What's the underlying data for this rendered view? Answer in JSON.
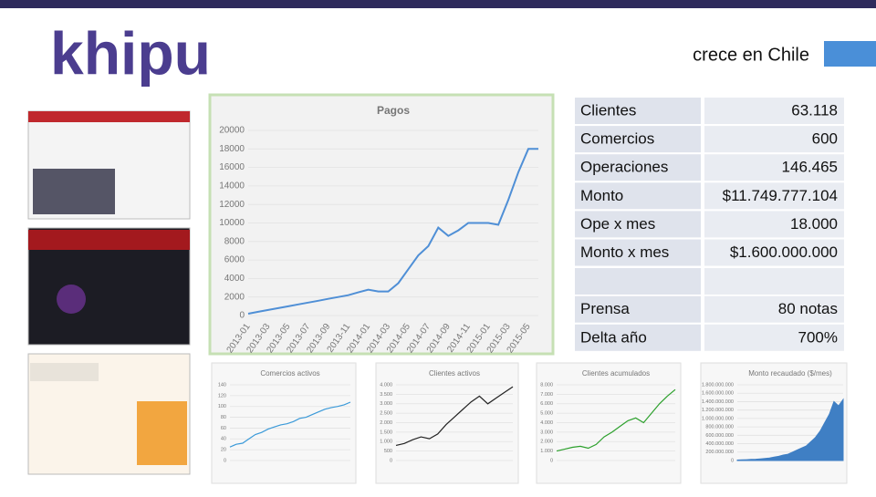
{
  "header": {
    "logo": "khipu",
    "title": "crece en Chile"
  },
  "table": {
    "rows": [
      [
        "Clientes",
        "63.118"
      ],
      [
        "Comercios",
        "600"
      ],
      [
        "Operaciones",
        "146.465"
      ],
      [
        "Monto",
        "$11.749.777.104"
      ],
      [
        "Ope x mes",
        "18.000"
      ],
      [
        "Monto x mes",
        "$1.600.000.000"
      ],
      [
        "Prensa",
        "80 notas"
      ],
      [
        "Delta año",
        "700%"
      ]
    ]
  },
  "chart_data": [
    {
      "type": "line",
      "title": "Pagos",
      "color": "#4f8fd6",
      "grid": true,
      "categories": [
        "2013-01",
        null,
        "2013-03",
        null,
        "2013-05",
        null,
        "2013-07",
        null,
        "2013-09",
        null,
        "2013-11",
        null,
        "2014-01",
        null,
        "2014-03",
        null,
        "2014-05",
        null,
        "2014-07",
        null,
        "2014-09",
        null,
        "2014-11",
        null,
        "2015-01",
        null,
        "2015-03",
        null,
        "2015-05",
        null
      ],
      "values": [
        200,
        400,
        600,
        800,
        1000,
        1200,
        1400,
        1600,
        1800,
        2000,
        2200,
        2500,
        2800,
        2600,
        2600,
        3500,
        5000,
        6500,
        7500,
        9500,
        8600,
        9200,
        10000,
        10000,
        10000,
        9800,
        12500,
        15500,
        18000,
        18000
      ],
      "ylim": [
        0,
        20000
      ],
      "yticks": [
        0,
        2000,
        4000,
        6000,
        8000,
        10000,
        12000,
        14000,
        16000,
        18000,
        20000
      ]
    },
    {
      "type": "line",
      "title": "Comercios activos",
      "color": "#3b9ad9",
      "grid": true,
      "values": [
        25,
        30,
        32,
        40,
        48,
        52,
        58,
        62,
        66,
        68,
        72,
        78,
        80,
        85,
        90,
        95,
        98,
        100,
        103,
        108
      ],
      "ylim": [
        0,
        140
      ],
      "yticks": [
        0,
        20,
        40,
        60,
        80,
        100,
        120,
        140
      ]
    },
    {
      "type": "line",
      "title": "Clientes activos",
      "color": "#222222",
      "grid": true,
      "values": [
        800,
        900,
        1100,
        1250,
        1150,
        1400,
        1900,
        2300,
        2700,
        3100,
        3400,
        3000,
        3300,
        3600,
        3900
      ],
      "ylim": [
        0,
        4000
      ],
      "yticks": [
        0,
        {
          "value": 500,
          "label": "500"
        },
        {
          "value": 1000,
          "label": "1.000"
        },
        {
          "value": 1500,
          "label": "1.500"
        },
        {
          "value": 2000,
          "label": "2.000"
        },
        {
          "value": 2500,
          "label": "2.500"
        },
        {
          "value": 3000,
          "label": "3.000"
        },
        {
          "value": 3500,
          "label": "3.500"
        },
        {
          "value": 4000,
          "label": "4.000"
        }
      ]
    },
    {
      "type": "line",
      "title": "Clientes acumulados",
      "color": "#2ca02c",
      "grid": true,
      "values": [
        1000,
        1200,
        1400,
        1500,
        1300,
        1700,
        2500,
        3000,
        3600,
        4200,
        4500,
        4000,
        5000,
        6000,
        6800,
        7500
      ],
      "ylim": [
        0,
        8000
      ],
      "yticks": [
        0,
        {
          "value": 1000,
          "label": "1.000"
        },
        {
          "value": 2000,
          "label": "2.000"
        },
        {
          "value": 3000,
          "label": "3.000"
        },
        {
          "value": 4000,
          "label": "4.000"
        },
        {
          "value": 5000,
          "label": "5.000"
        },
        {
          "value": 6000,
          "label": "6.000"
        },
        {
          "value": 7000,
          "label": "7.000"
        },
        {
          "value": 8000,
          "label": "8.000"
        }
      ]
    },
    {
      "type": "area",
      "title": "Monto recaudado ($/mes)",
      "color": "#3f7fc4",
      "grid": true,
      "values": [
        10000000,
        15000000,
        20000000,
        25000000,
        30000000,
        40000000,
        50000000,
        60000000,
        80000000,
        100000000,
        130000000,
        150000000,
        200000000,
        250000000,
        300000000,
        350000000,
        450000000,
        550000000,
        700000000,
        900000000,
        1100000000,
        1400000000,
        1300000000,
        1450000000
      ],
      "ylim": [
        0,
        1800000000
      ],
      "yticks": [
        0,
        {
          "value": 200000000,
          "label": "200.000.000"
        },
        {
          "value": 400000000,
          "label": "400.000.000"
        },
        {
          "value": 600000000,
          "label": "600.000.000"
        },
        {
          "value": 800000000,
          "label": "800.000.000"
        },
        {
          "value": 1000000000,
          "label": "1.000.000.000"
        },
        {
          "value": 1200000000,
          "label": "1.200.000.000"
        },
        {
          "value": 1400000000,
          "label": "1.400.000.000"
        },
        {
          "value": 1600000000,
          "label": "1.600.000.000"
        },
        {
          "value": 1800000000,
          "label": "1.800.000.000"
        }
      ]
    }
  ]
}
